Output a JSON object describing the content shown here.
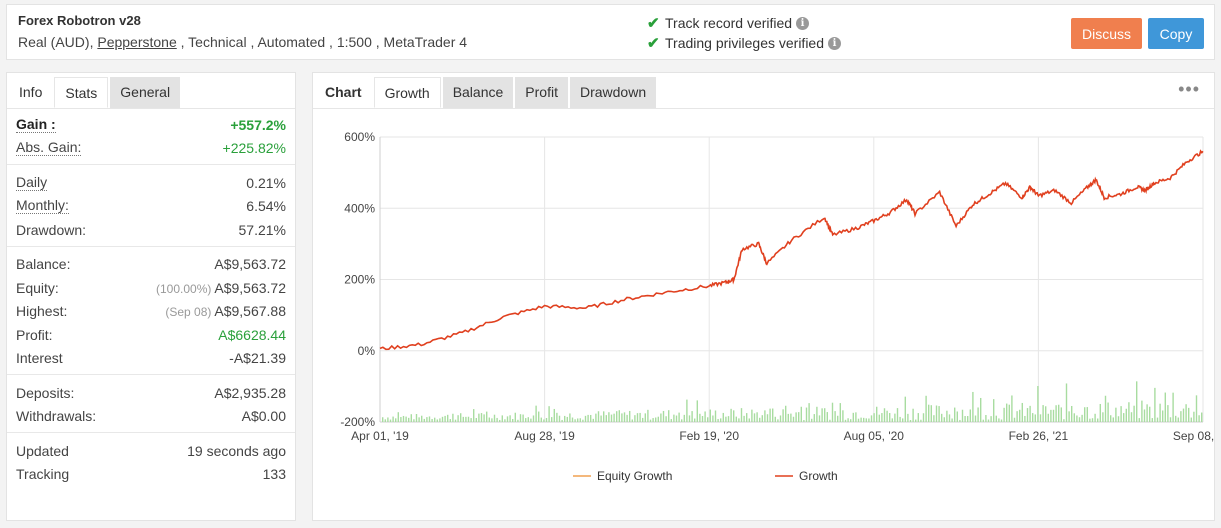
{
  "header": {
    "title": "Forex Robotron v28",
    "account_type": "Real (AUD),",
    "broker": "Pepperstone",
    "rest": ", Technical , Automated , 1:500 , MetaTrader 4",
    "verif1": "Track record verified",
    "verif2": "Trading privileges verified",
    "discuss": "Discuss",
    "copy": "Copy"
  },
  "left_tabs": [
    "Info",
    "Stats",
    "General"
  ],
  "stats": {
    "gain_label": "Gain :",
    "gain": "+557.2%",
    "abs_label": "Abs. Gain:",
    "abs": "+225.82%",
    "daily_label": "Daily",
    "daily": "0.21%",
    "monthly_label": "Monthly:",
    "monthly": "6.54%",
    "drawdown_label": "Drawdown:",
    "drawdown": "57.21%",
    "balance_label": "Balance:",
    "balance": "A$9,563.72",
    "equity_label": "Equity:",
    "equity_pct": "(100.00%)",
    "equity": "A$9,563.72",
    "highest_label": "Highest:",
    "highest_date": "(Sep 08)",
    "highest": "A$9,567.88",
    "profit_label": "Profit:",
    "profit": "A$6628.44",
    "interest_label": "Interest",
    "interest": "-A$21.39",
    "deposits_label": "Deposits:",
    "deposits": "A$2,935.28",
    "withdrawals_label": "Withdrawals:",
    "withdrawals": "A$0.00",
    "updated_label": "Updated",
    "updated": "19 seconds ago",
    "tracking_label": "Tracking",
    "tracking": "133"
  },
  "right_tabs": [
    "Chart",
    "Growth",
    "Balance",
    "Profit",
    "Drawdown"
  ],
  "more_icon": "•••",
  "chart_data": {
    "type": "line",
    "y_ticks": [
      "600%",
      "400%",
      "200%",
      "0%",
      "-200%"
    ],
    "x_ticks": [
      "Apr 01, '19",
      "Aug 28, '19",
      "Feb 19, '20",
      "Aug 05, '20",
      "Feb 26, '21",
      "Sep 08, '21"
    ],
    "ylim": [
      -200,
      600
    ],
    "grid": true,
    "legend_placement": "bottom",
    "series": [
      {
        "name": "Equity Growth",
        "color": "#f0a050"
      },
      {
        "name": "Growth",
        "color": "#e0401f",
        "x": [
          0,
          0.05,
          0.1,
          0.15,
          0.2,
          0.25,
          0.3,
          0.35,
          0.4,
          0.42,
          0.43,
          0.44,
          0.46,
          0.47,
          0.5,
          0.54,
          0.55,
          0.58,
          0.6,
          0.62,
          0.64,
          0.65,
          0.68,
          0.7,
          0.72,
          0.74,
          0.76,
          0.78,
          0.79,
          0.8,
          0.82,
          0.84,
          0.86,
          0.87,
          0.88,
          0.9,
          0.92,
          0.93,
          0.94,
          0.96,
          0.98,
          1.0
        ],
        "y": [
          5,
          18,
          50,
          95,
          125,
          120,
          145,
          165,
          182,
          192,
          200,
          285,
          300,
          245,
          310,
          375,
          325,
          345,
          365,
          388,
          425,
          385,
          445,
          350,
          410,
          440,
          470,
          430,
          460,
          435,
          450,
          415,
          460,
          480,
          430,
          440,
          460,
          450,
          470,
          485,
          530,
          560
        ]
      }
    ]
  }
}
